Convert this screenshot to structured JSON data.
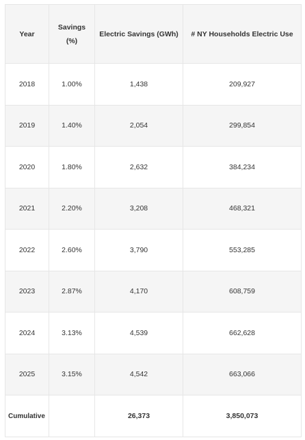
{
  "table": {
    "headers": {
      "year": "Year",
      "savings_line1": "Savings",
      "savings_line2": "(%)",
      "electric_savings": "Electric Savings (GWh)",
      "households": "# NY Households Electric Use"
    },
    "rows": [
      {
        "year": "2018",
        "savings": "1.00%",
        "electric_savings": "1,438",
        "households": "209,927"
      },
      {
        "year": "2019",
        "savings": "1.40%",
        "electric_savings": "2,054",
        "households": "299,854"
      },
      {
        "year": "2020",
        "savings": "1.80%",
        "electric_savings": "2,632",
        "households": "384,234"
      },
      {
        "year": "2021",
        "savings": "2.20%",
        "electric_savings": "3,208",
        "households": "468,321"
      },
      {
        "year": "2022",
        "savings": "2.60%",
        "electric_savings": "3,790",
        "households": "553,285"
      },
      {
        "year": "2023",
        "savings": "2.87%",
        "electric_savings": "4,170",
        "households": "608,759"
      },
      {
        "year": "2024",
        "savings": "3.13%",
        "electric_savings": "4,539",
        "households": "662,628"
      },
      {
        "year": "2025",
        "savings": "3.15%",
        "electric_savings": "4,542",
        "households": "663,066"
      }
    ],
    "cumulative": {
      "label": "Cumulative",
      "savings": "",
      "electric_savings": "26,373",
      "households": "3,850,073"
    }
  }
}
